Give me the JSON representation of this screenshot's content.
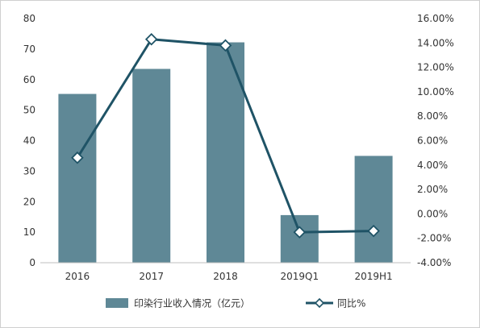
{
  "chart_data": {
    "type": "bar",
    "categories": [
      "2016",
      "2017",
      "2018",
      "2019Q1",
      "2019H1"
    ],
    "series": [
      {
        "name": "印染行业收入情况（亿元）",
        "type": "bar",
        "axis": "left",
        "values": [
          55.3,
          63.5,
          72.2,
          15.6,
          35.0
        ],
        "color": "#5f8896"
      },
      {
        "name": "同比%",
        "type": "line",
        "axis": "right",
        "values": [
          4.6,
          14.3,
          13.8,
          -1.5,
          -1.4
        ],
        "color": "#1f5366"
      }
    ],
    "y_left": {
      "min": 0,
      "max": 80,
      "step": 10,
      "ticks": [
        "0",
        "10",
        "20",
        "30",
        "40",
        "50",
        "60",
        "70",
        "80"
      ]
    },
    "y_right": {
      "min": -4,
      "max": 16,
      "step": 2,
      "ticks": [
        "-4.00%",
        "-2.00%",
        "0.00%",
        "2.00%",
        "4.00%",
        "6.00%",
        "8.00%",
        "10.00%",
        "12.00%",
        "14.00%",
        "16.00%"
      ]
    },
    "grid": false,
    "legend_position": "bottom"
  }
}
